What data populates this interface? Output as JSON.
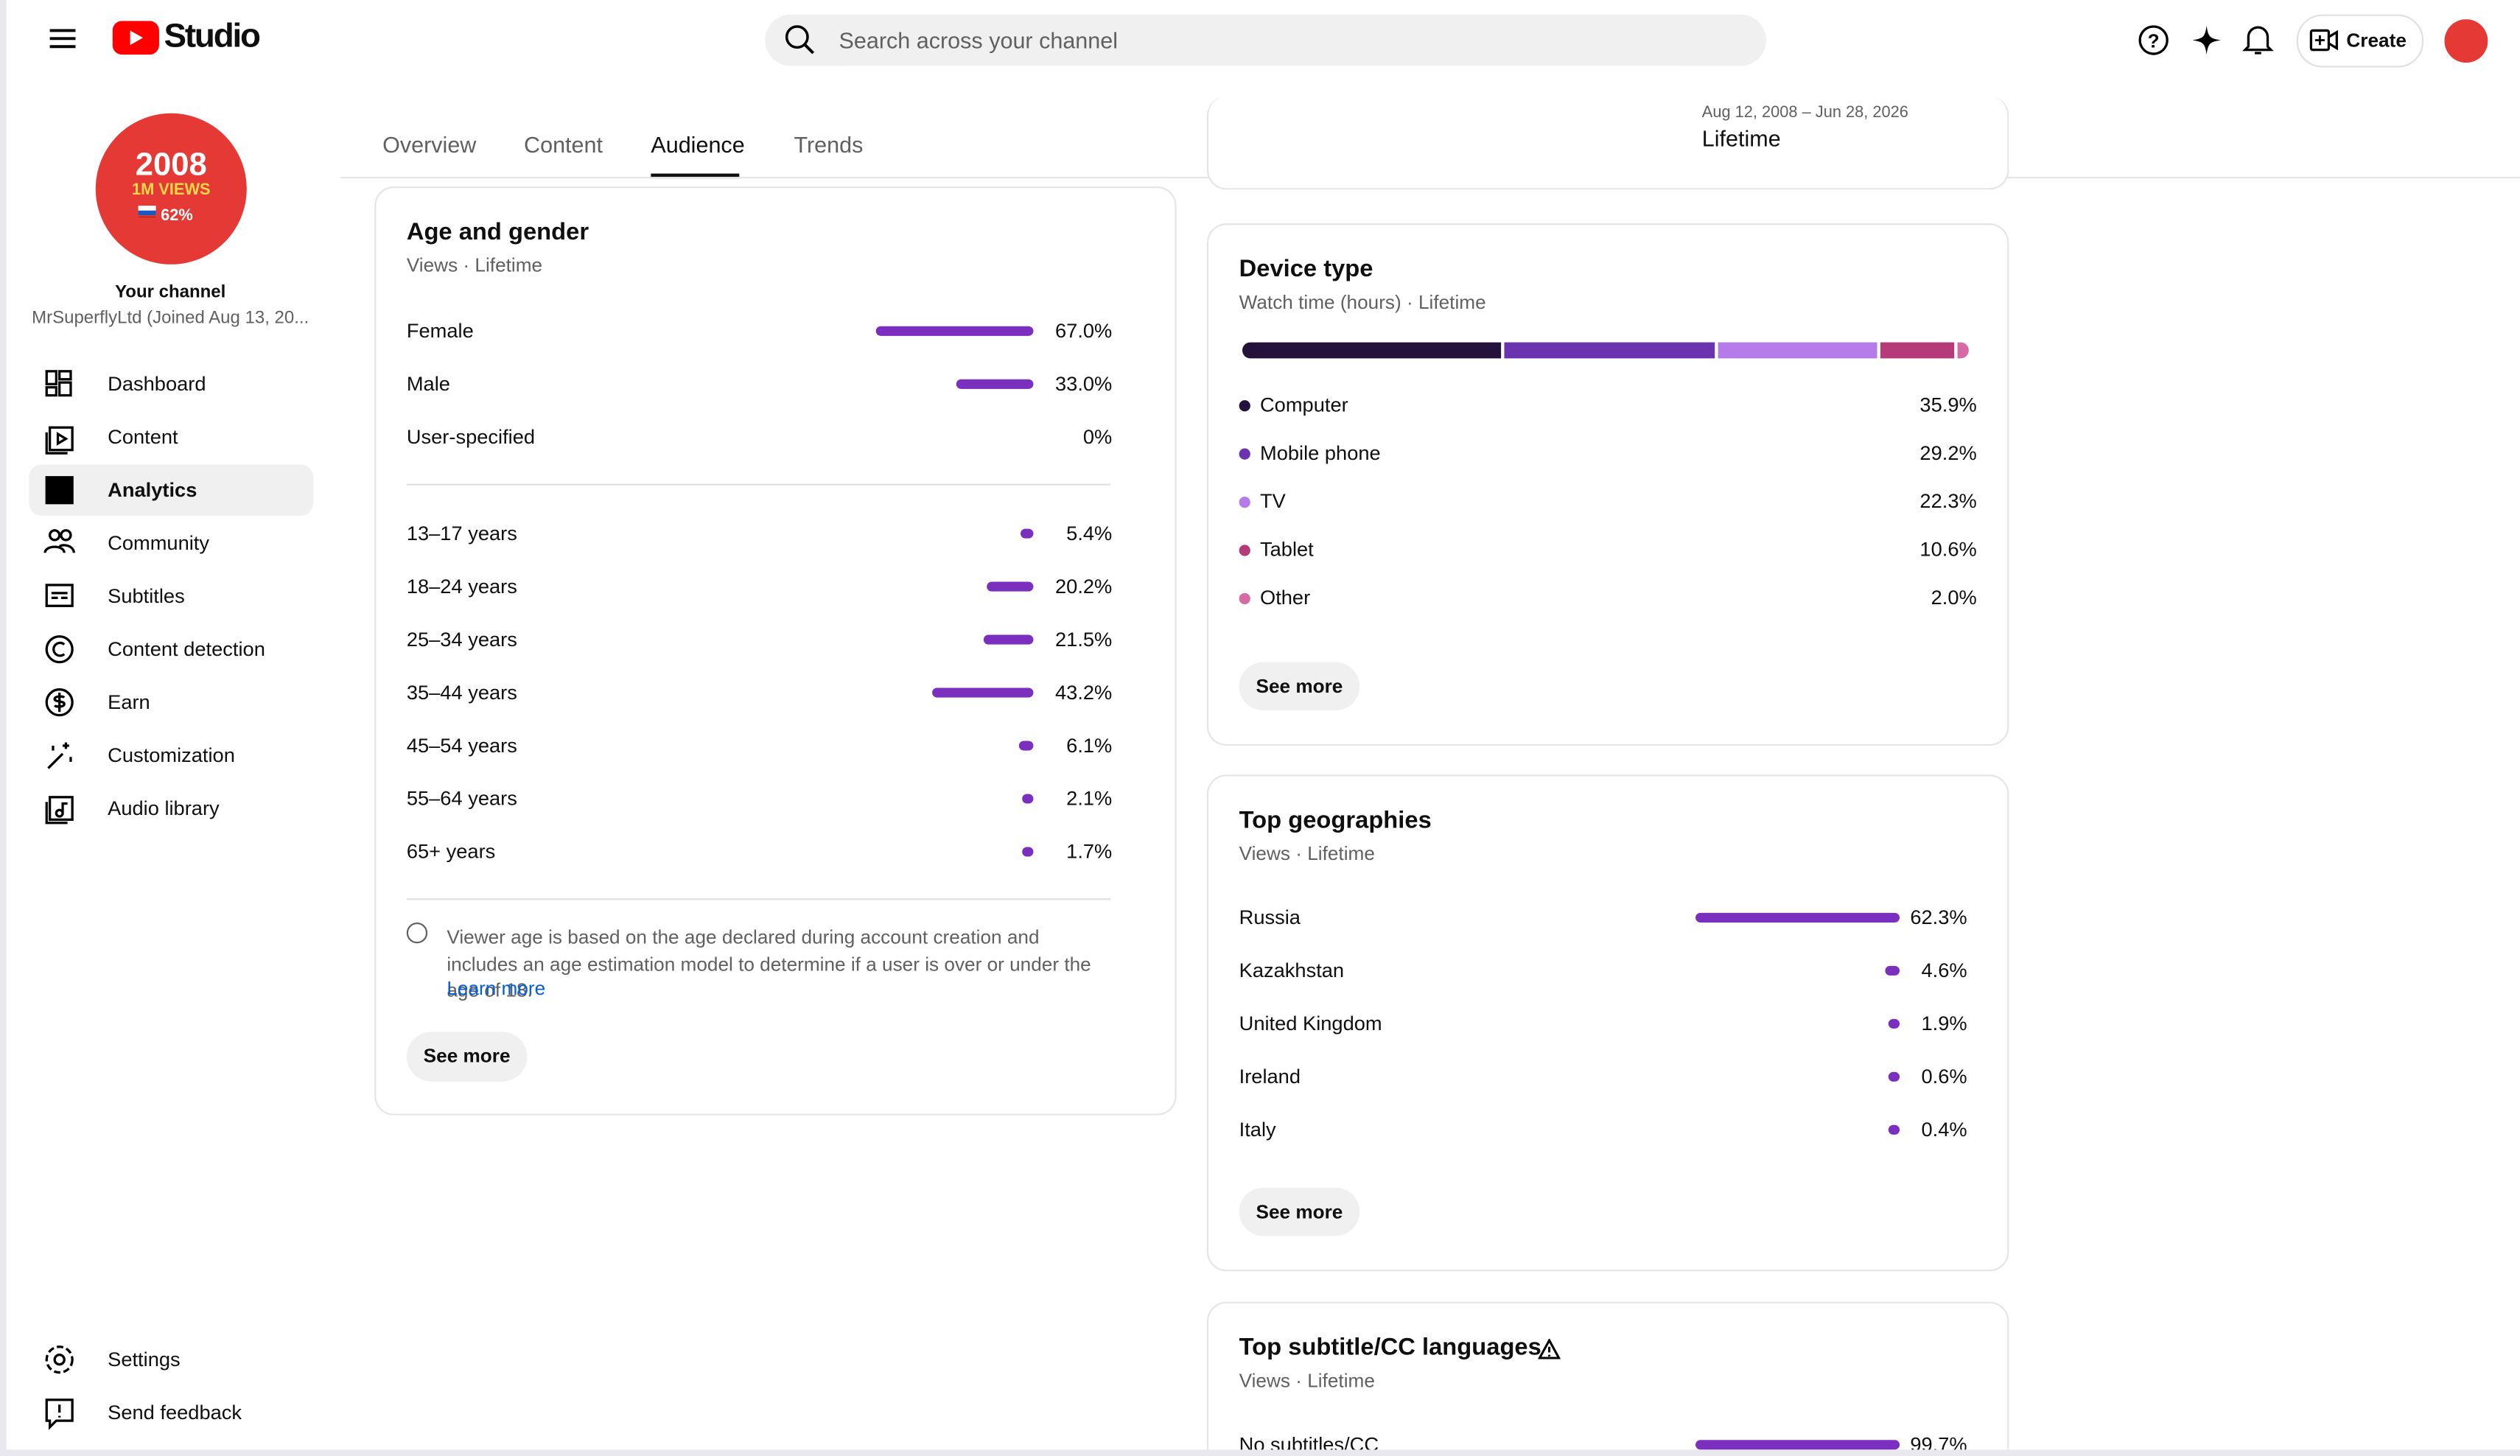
{
  "header": {
    "logo_text": "Studio",
    "search_placeholder": "Search across your channel",
    "create_label": "Create"
  },
  "sidebar": {
    "avatar_lines": [
      "2008",
      "1M VIEWS",
      "62%"
    ],
    "channel_title": "Your channel",
    "channel_name": "MrSuperflyLtd (Joined Aug 13, 20...",
    "nav": [
      "Dashboard",
      "Content",
      "Analytics",
      "Community",
      "Subtitles",
      "Content detection",
      "Earn",
      "Customization",
      "Audio library"
    ],
    "footer": [
      "Settings",
      "Send feedback"
    ]
  },
  "tabs": [
    "Overview",
    "Content",
    "Audience",
    "Trends"
  ],
  "date_range": {
    "range": "Aug 12, 2008 – Jun 28, 2026",
    "label": "Lifetime"
  },
  "bar_color": "#7b2fbf",
  "age_gender": {
    "title": "Age and gender",
    "subtitle": "Views · Lifetime",
    "gender": [
      {
        "label": "Female",
        "value": 67.0,
        "value_label": "67.0%"
      },
      {
        "label": "Male",
        "value": 33.0,
        "value_label": "33.0%"
      },
      {
        "label": "User-specified",
        "value": 0,
        "value_label": "0%"
      }
    ],
    "age": [
      {
        "label": "13–17 years",
        "value": 5.4,
        "value_label": "5.4%"
      },
      {
        "label": "18–24 years",
        "value": 20.2,
        "value_label": "20.2%"
      },
      {
        "label": "25–34 years",
        "value": 21.5,
        "value_label": "21.5%"
      },
      {
        "label": "35–44 years",
        "value": 43.2,
        "value_label": "43.2%"
      },
      {
        "label": "45–54 years",
        "value": 6.1,
        "value_label": "6.1%"
      },
      {
        "label": "55–64 years",
        "value": 2.1,
        "value_label": "2.1%"
      },
      {
        "label": "65+ years",
        "value": 1.7,
        "value_label": "1.7%"
      }
    ],
    "note": "Viewer age is based on the age declared during account creation and includes an age estimation model to determine if a user is over or under the age of 18.",
    "learn_more": "Learn more",
    "see_more": "See more"
  },
  "device_type": {
    "title": "Device type",
    "subtitle": "Watch time (hours) · Lifetime",
    "items": [
      {
        "label": "Computer",
        "value": 35.9,
        "value_label": "35.9%",
        "color": "#24123d"
      },
      {
        "label": "Mobile phone",
        "value": 29.2,
        "value_label": "29.2%",
        "color": "#6c33b0"
      },
      {
        "label": "TV",
        "value": 22.3,
        "value_label": "22.3%",
        "color": "#b57be8"
      },
      {
        "label": "Tablet",
        "value": 10.6,
        "value_label": "10.6%",
        "color": "#b53a7a"
      },
      {
        "label": "Other",
        "value": 2.0,
        "value_label": "2.0%",
        "color": "#d56aa4"
      }
    ],
    "see_more": "See more"
  },
  "top_geographies": {
    "title": "Top geographies",
    "subtitle": "Views · Lifetime",
    "items": [
      {
        "label": "Russia",
        "value": 62.3,
        "value_label": "62.3%"
      },
      {
        "label": "Kazakhstan",
        "value": 4.6,
        "value_label": "4.6%"
      },
      {
        "label": "United Kingdom",
        "value": 1.9,
        "value_label": "1.9%"
      },
      {
        "label": "Ireland",
        "value": 0.6,
        "value_label": "0.6%"
      },
      {
        "label": "Italy",
        "value": 0.4,
        "value_label": "0.4%"
      }
    ],
    "see_more": "See more"
  },
  "subtitle_languages": {
    "title": "Top subtitle/CC languages",
    "subtitle": "Views · Lifetime",
    "items": [
      {
        "label": "No subtitles/CC",
        "value": 99.7,
        "value_label": "99.7%"
      }
    ]
  }
}
